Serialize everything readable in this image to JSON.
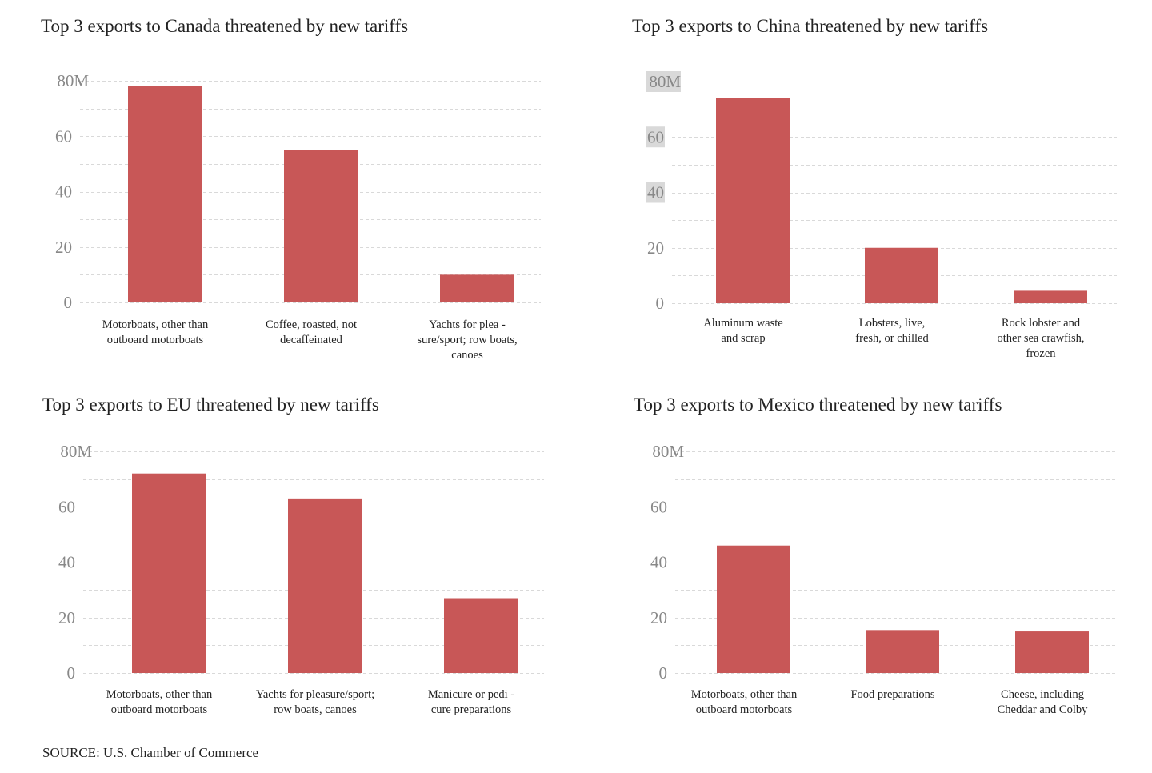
{
  "source": "SOURCE: U.S. Chamber of Commerce",
  "chart_data": [
    {
      "type": "bar",
      "title": "Top 3 exports to Canada threatened by new tariffs",
      "categories": [
        [
          "Motorboats, other than",
          "outboard motorboats"
        ],
        [
          "Coffee, roasted, not",
          "decaffeinated"
        ],
        [
          "Yachts for plea   -",
          "sure/sport; row boats,",
          "canoes"
        ]
      ],
      "values": [
        78,
        55,
        10
      ],
      "ylim": [
        0,
        80
      ],
      "yticks": [
        "0",
        "20",
        "40",
        "60",
        "80M"
      ],
      "grid": true,
      "bar_color": "#c85757"
    },
    {
      "type": "bar",
      "title": "Top 3 exports to China threatened by new tariffs",
      "categories": [
        [
          "Aluminum waste",
          "and scrap"
        ],
        [
          "Lobsters, live,",
          "fresh, or chilled"
        ],
        [
          "Rock lobster and",
          "other sea crawfish,",
          "frozen"
        ]
      ],
      "values": [
        74,
        20,
        4.5
      ],
      "ylim": [
        0,
        80
      ],
      "yticks": [
        "0",
        "20",
        "40",
        "60",
        "80M"
      ],
      "highlighted_ticks": [
        "40",
        "60",
        "80M"
      ],
      "grid": true,
      "bar_color": "#c85757"
    },
    {
      "type": "bar",
      "title": "Top 3 exports to EU threatened by new tariffs",
      "categories": [
        [
          "Motorboats, other than",
          "outboard motorboats"
        ],
        [
          "Yachts for pleasure/sport;",
          "row boats, canoes"
        ],
        [
          "Manicure or pedi      -",
          "cure preparations"
        ]
      ],
      "values": [
        72,
        63,
        27
      ],
      "ylim": [
        0,
        80
      ],
      "yticks": [
        "0",
        "20",
        "40",
        "60",
        "80M"
      ],
      "grid": true,
      "bar_color": "#c85757"
    },
    {
      "type": "bar",
      "title": "Top 3 exports to Mexico threatened by new tariffs",
      "categories": [
        [
          "Motorboats, other than",
          "outboard motorboats"
        ],
        [
          "Food preparations"
        ],
        [
          "Cheese, including",
          "Cheddar and Colby"
        ]
      ],
      "values": [
        46,
        15.5,
        15
      ],
      "ylim": [
        0,
        80
      ],
      "yticks": [
        "0",
        "20",
        "40",
        "60",
        "80M"
      ],
      "grid": true,
      "bar_color": "#c85757"
    }
  ]
}
